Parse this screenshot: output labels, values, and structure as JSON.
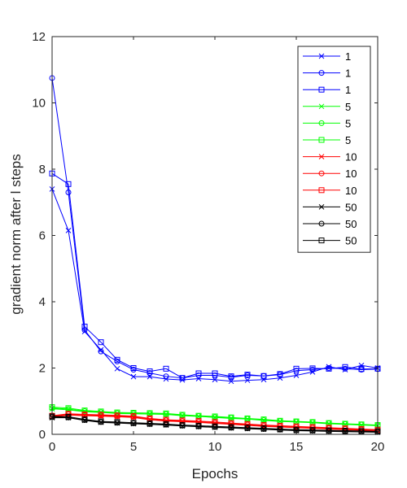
{
  "chart_data": {
    "type": "line",
    "xlabel": "Epochs",
    "ylabel": "gradient norm after l steps",
    "xlim": [
      0,
      20
    ],
    "ylim": [
      0,
      12
    ],
    "xticks": [
      0,
      5,
      10,
      15,
      20
    ],
    "yticks": [
      0,
      2,
      4,
      6,
      8,
      10,
      12
    ],
    "grid": false,
    "legend_position": "top-right",
    "colors": {
      "blue": "#0000ff",
      "green": "#00ff00",
      "red": "#ff0000",
      "black": "#000000"
    },
    "x": [
      0,
      1,
      2,
      3,
      4,
      5,
      6,
      7,
      8,
      9,
      10,
      11,
      12,
      13,
      14,
      15,
      16,
      17,
      18,
      19,
      20
    ],
    "series": [
      {
        "name": "1",
        "color": "#0000ff",
        "marker": "x",
        "values": [
          7.4,
          6.15,
          3.1,
          2.55,
          1.98,
          1.74,
          1.74,
          1.67,
          1.64,
          1.68,
          1.65,
          1.6,
          1.63,
          1.65,
          1.7,
          1.78,
          1.88,
          2.04,
          1.95,
          2.08,
          2.0
        ]
      },
      {
        "name": "1",
        "color": "#0000ff",
        "marker": "circle",
        "values": [
          10.75,
          7.3,
          3.15,
          2.5,
          2.2,
          1.95,
          1.85,
          1.75,
          1.7,
          1.78,
          1.78,
          1.72,
          1.78,
          1.76,
          1.8,
          1.92,
          1.95,
          2.0,
          1.98,
          1.95,
          1.97
        ]
      },
      {
        "name": "1",
        "color": "#0000ff",
        "marker": "square",
        "values": [
          7.87,
          7.55,
          3.25,
          2.78,
          2.25,
          2.0,
          1.9,
          1.98,
          1.7,
          1.84,
          1.84,
          1.75,
          1.8,
          1.76,
          1.82,
          1.98,
          1.99,
          1.98,
          2.03,
          1.97,
          1.98
        ]
      },
      {
        "name": "5",
        "color": "#00ff00",
        "marker": "x",
        "values": [
          0.77,
          0.74,
          0.68,
          0.66,
          0.63,
          0.62,
          0.61,
          0.6,
          0.56,
          0.54,
          0.51,
          0.48,
          0.46,
          0.42,
          0.39,
          0.37,
          0.35,
          0.32,
          0.3,
          0.28,
          0.26
        ]
      },
      {
        "name": "5",
        "color": "#00ff00",
        "marker": "circle",
        "values": [
          0.79,
          0.76,
          0.7,
          0.67,
          0.64,
          0.63,
          0.62,
          0.61,
          0.57,
          0.55,
          0.52,
          0.5,
          0.47,
          0.43,
          0.4,
          0.38,
          0.36,
          0.33,
          0.31,
          0.29,
          0.27
        ]
      },
      {
        "name": "5",
        "color": "#00ff00",
        "marker": "square",
        "values": [
          0.82,
          0.79,
          0.72,
          0.69,
          0.66,
          0.65,
          0.64,
          0.63,
          0.59,
          0.56,
          0.54,
          0.51,
          0.48,
          0.45,
          0.41,
          0.39,
          0.37,
          0.34,
          0.32,
          0.3,
          0.28
        ]
      },
      {
        "name": "10",
        "color": "#ff0000",
        "marker": "x",
        "values": [
          0.52,
          0.58,
          0.56,
          0.55,
          0.53,
          0.51,
          0.44,
          0.4,
          0.38,
          0.36,
          0.33,
          0.3,
          0.27,
          0.24,
          0.22,
          0.2,
          0.18,
          0.16,
          0.14,
          0.12,
          0.1
        ]
      },
      {
        "name": "10",
        "color": "#ff0000",
        "marker": "circle",
        "values": [
          0.54,
          0.6,
          0.58,
          0.57,
          0.55,
          0.53,
          0.46,
          0.42,
          0.4,
          0.38,
          0.35,
          0.32,
          0.29,
          0.26,
          0.24,
          0.22,
          0.2,
          0.18,
          0.16,
          0.14,
          0.12
        ]
      },
      {
        "name": "10",
        "color": "#ff0000",
        "marker": "square",
        "values": [
          0.56,
          0.62,
          0.6,
          0.59,
          0.57,
          0.55,
          0.48,
          0.44,
          0.42,
          0.4,
          0.37,
          0.34,
          0.31,
          0.28,
          0.26,
          0.24,
          0.22,
          0.2,
          0.18,
          0.16,
          0.14
        ]
      },
      {
        "name": "50",
        "color": "#000000",
        "marker": "x",
        "values": [
          0.5,
          0.5,
          0.42,
          0.36,
          0.34,
          0.32,
          0.3,
          0.28,
          0.25,
          0.23,
          0.21,
          0.19,
          0.17,
          0.15,
          0.13,
          0.11,
          0.1,
          0.09,
          0.08,
          0.07,
          0.06
        ]
      },
      {
        "name": "50",
        "color": "#000000",
        "marker": "circle",
        "values": [
          0.52,
          0.51,
          0.43,
          0.37,
          0.35,
          0.33,
          0.31,
          0.29,
          0.26,
          0.24,
          0.22,
          0.2,
          0.18,
          0.16,
          0.14,
          0.12,
          0.11,
          0.1,
          0.09,
          0.08,
          0.07
        ]
      },
      {
        "name": "50",
        "color": "#000000",
        "marker": "square",
        "values": [
          0.54,
          0.53,
          0.45,
          0.39,
          0.37,
          0.35,
          0.33,
          0.31,
          0.28,
          0.26,
          0.24,
          0.22,
          0.2,
          0.18,
          0.16,
          0.14,
          0.13,
          0.12,
          0.11,
          0.1,
          0.09
        ]
      }
    ]
  }
}
